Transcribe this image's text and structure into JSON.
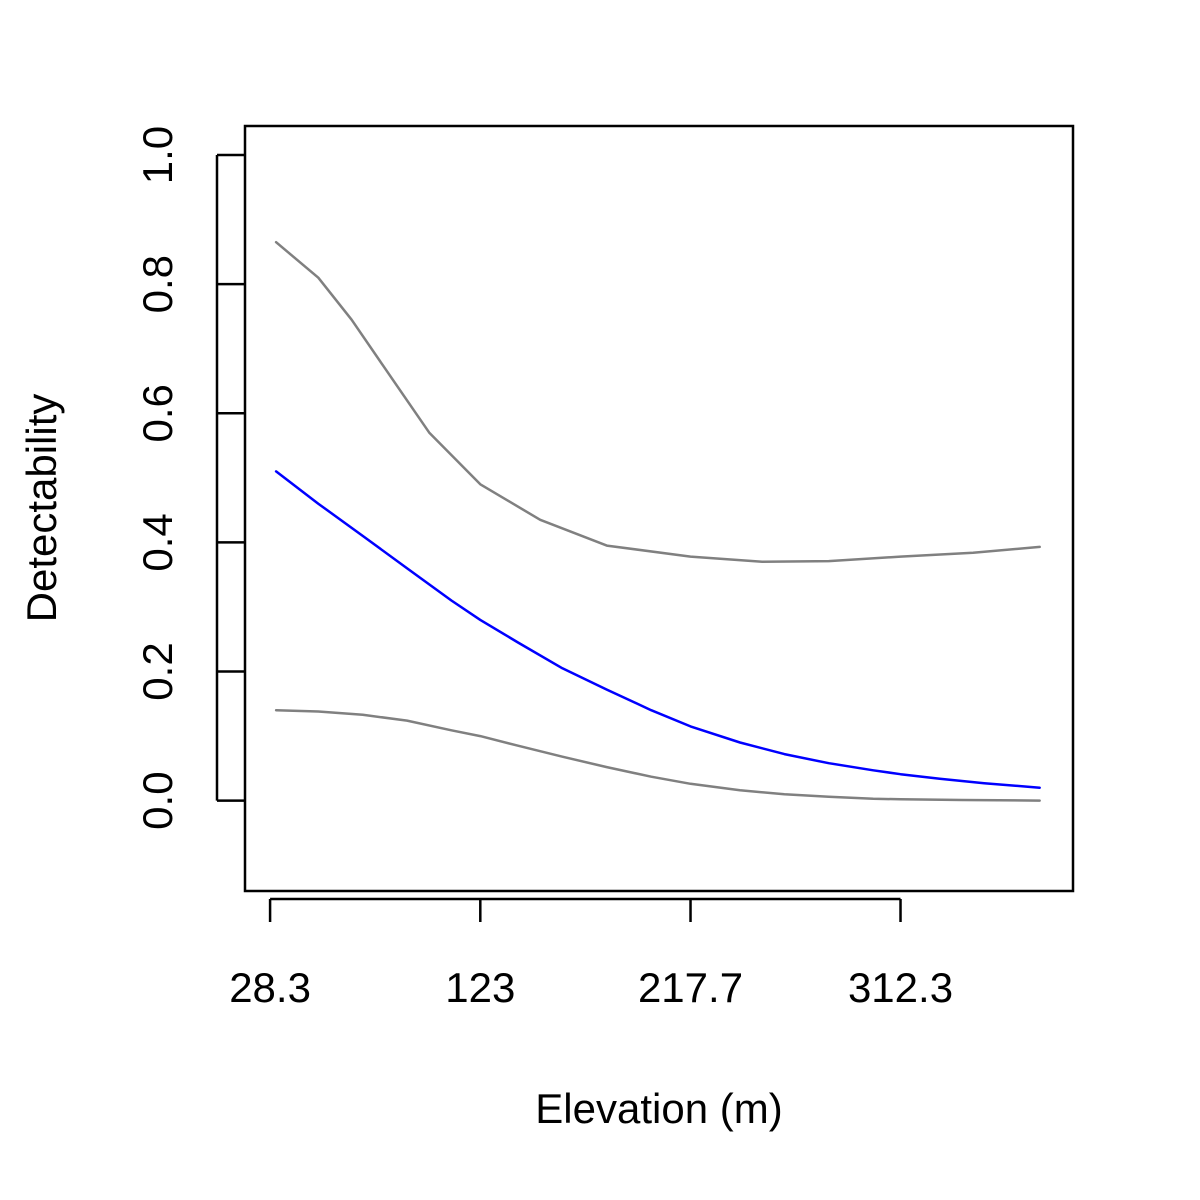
{
  "chart_data": {
    "type": "line",
    "xlabel": "Elevation (m)",
    "ylabel": "Detectability",
    "x_ticks": [
      28.3,
      123,
      217.7,
      312.3
    ],
    "x_tick_labels": [
      "28.3",
      "123",
      "217.7",
      "312.3"
    ],
    "y_ticks": [
      0.0,
      0.2,
      0.4,
      0.6,
      0.8,
      1.0
    ],
    "y_tick_labels": [
      "0.0",
      "0.2",
      "0.4",
      "0.6",
      "0.8",
      "1.0"
    ],
    "xlim": [
      17,
      390
    ],
    "ylim": [
      -0.14,
      1.045
    ],
    "grid": false,
    "series": [
      {
        "color": "#808080",
        "x": [
          31,
          50,
          65,
          80,
          100,
          123,
          150,
          180,
          217.7,
          250,
          280,
          312.3,
          345,
          375
        ],
        "y": [
          0.865,
          0.81,
          0.745,
          0.67,
          0.57,
          0.49,
          0.435,
          0.395,
          0.378,
          0.37,
          0.371,
          0.378,
          0.384,
          0.393
        ]
      },
      {
        "color": "#0000ff",
        "x": [
          31,
          50,
          70,
          90,
          110,
          123,
          140,
          160,
          180,
          200,
          217.7,
          240,
          260,
          280,
          300,
          312.3,
          330,
          350,
          375
        ],
        "y": [
          0.51,
          0.46,
          0.41,
          0.36,
          0.31,
          0.28,
          0.245,
          0.205,
          0.172,
          0.14,
          0.115,
          0.09,
          0.072,
          0.058,
          0.047,
          0.041,
          0.034,
          0.027,
          0.02
        ]
      },
      {
        "color": "#808080",
        "x": [
          31,
          50,
          70,
          90,
          110,
          123,
          140,
          160,
          180,
          200,
          217.7,
          240,
          260,
          280,
          300,
          312.3,
          340,
          375
        ],
        "y": [
          0.14,
          0.138,
          0.133,
          0.124,
          0.109,
          0.1,
          0.085,
          0.068,
          0.052,
          0.037,
          0.026,
          0.016,
          0.01,
          0.006,
          0.003,
          0.002,
          0.001,
          0.0
        ]
      }
    ]
  }
}
